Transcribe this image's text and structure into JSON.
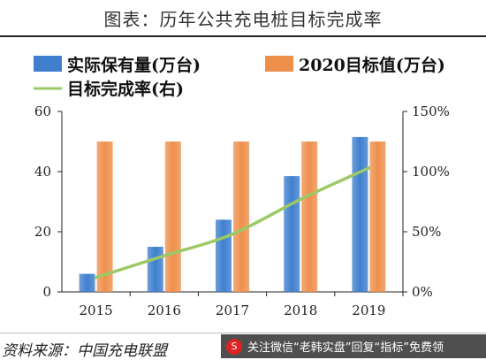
{
  "header": {
    "title": "图表：历年公共充电桩目标完成率"
  },
  "footer": {
    "source": "资料来源：中国充电联盟",
    "watermark": "关注微信“老韩实盘”回复“指标”免费领"
  },
  "icons": {
    "watermark_logo": "sina-logo-icon"
  },
  "colors": {
    "actual_bar": "#3f7fce",
    "target_bar": "#ef8f4c",
    "rate_line": "#9bc965"
  },
  "chart_data": {
    "type": "bar",
    "categories": [
      "2015",
      "2016",
      "2017",
      "2018",
      "2019"
    ],
    "series": [
      {
        "name": "实际保有量(万台)",
        "type": "bar",
        "axis": "left",
        "values": [
          6,
          15,
          24,
          38.5,
          51.5
        ]
      },
      {
        "name": "2020目标值(万台)",
        "type": "bar",
        "axis": "left",
        "values": [
          50,
          50,
          50,
          50,
          50
        ]
      },
      {
        "name": "目标完成率(右)",
        "type": "line",
        "axis": "right",
        "values": [
          12,
          30,
          48,
          77,
          103
        ]
      }
    ],
    "title": "图表：历年公共充电桩目标完成率",
    "ylim": [
      0,
      60
    ],
    "y_ticks": [
      "0",
      "20",
      "40",
      "60"
    ],
    "y2lim": [
      0,
      150
    ],
    "y2_ticks": [
      "0%",
      "50%",
      "100%",
      "150%"
    ],
    "legend_position": "top",
    "grid": false
  }
}
